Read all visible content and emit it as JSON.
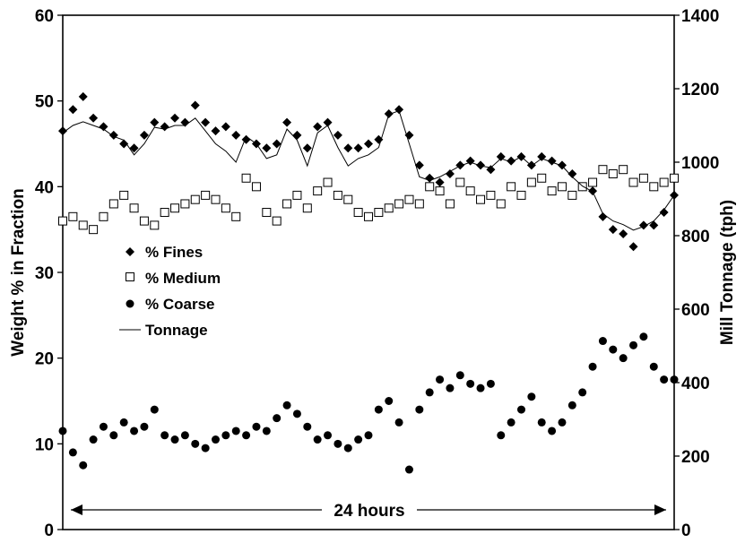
{
  "chart_data": {
    "type": "scatter",
    "title": "",
    "left_axis": {
      "label": "Weight % in Fraction",
      "ylim": [
        0,
        60
      ],
      "ticks": [
        0,
        10,
        20,
        30,
        40,
        50,
        60
      ],
      "tick_labels": [
        "0",
        "10",
        "20",
        "30",
        "40",
        "50",
        "60"
      ]
    },
    "right_axis": {
      "label": "Mill Tonnage (tph)",
      "ylim": [
        0,
        1400
      ],
      "ticks": [
        0,
        200,
        400,
        600,
        800,
        1000,
        1200,
        1400
      ],
      "tick_labels": [
        "0",
        "200",
        "400",
        "600",
        "800",
        "1000",
        "1200",
        "1400"
      ]
    },
    "x_annotation": "24 hours",
    "x_range_hours": [
      0,
      24
    ],
    "grid": false,
    "legend": {
      "placement": "left-middle",
      "entries": [
        {
          "label": "% Fines",
          "marker": "diamond-filled"
        },
        {
          "label": "% Medium",
          "marker": "square-open"
        },
        {
          "label": "% Coarse",
          "marker": "circle-filled"
        },
        {
          "label": "Tonnage",
          "marker": "line"
        }
      ]
    },
    "series": [
      {
        "name": "% Fines",
        "axis": "left",
        "marker": "diamond-filled",
        "x": [
          0,
          0.4,
          0.8,
          1.2,
          1.6,
          2,
          2.4,
          2.8,
          3.2,
          3.6,
          4,
          4.4,
          4.8,
          5.2,
          5.6,
          6,
          6.4,
          6.8,
          7.2,
          7.6,
          8,
          8.4,
          8.8,
          9.2,
          9.6,
          10,
          10.4,
          10.8,
          11.2,
          11.6,
          12,
          12.4,
          12.8,
          13.2,
          13.6,
          14,
          14.4,
          14.8,
          15.2,
          15.6,
          16,
          16.4,
          16.8,
          17.2,
          17.6,
          18,
          18.4,
          18.8,
          19.2,
          19.6,
          20,
          20.4,
          20.8,
          21.2,
          21.6,
          22,
          22.4,
          22.8,
          23.2,
          23.6,
          24
        ],
        "y": [
          46.5,
          49,
          50.5,
          48,
          47,
          46,
          45,
          44.5,
          46,
          47.5,
          47,
          48,
          47.5,
          49.5,
          47.5,
          46.5,
          47,
          46,
          45.5,
          45,
          44.5,
          45,
          47.5,
          46,
          44.5,
          47,
          47.5,
          46,
          44.5,
          44.5,
          45,
          45.5,
          48.5,
          49,
          46,
          42.5,
          41,
          40.5,
          41.5,
          42.5,
          43,
          42.5,
          42,
          43.5,
          43,
          43.5,
          42.5,
          43.5,
          43,
          42.5,
          41.5,
          40,
          39.5,
          36.5,
          35,
          34.5,
          33,
          35.5,
          35.5,
          37,
          39
        ]
      },
      {
        "name": "% Medium",
        "axis": "left",
        "marker": "square-open",
        "x": [
          0,
          0.4,
          0.8,
          1.2,
          1.6,
          2,
          2.4,
          2.8,
          3.2,
          3.6,
          4,
          4.4,
          4.8,
          5.2,
          5.6,
          6,
          6.4,
          6.8,
          7.2,
          7.6,
          8,
          8.4,
          8.8,
          9.2,
          9.6,
          10,
          10.4,
          10.8,
          11.2,
          11.6,
          12,
          12.4,
          12.8,
          13.2,
          13.6,
          14,
          14.4,
          14.8,
          15.2,
          15.6,
          16,
          16.4,
          16.8,
          17.2,
          17.6,
          18,
          18.4,
          18.8,
          19.2,
          19.6,
          20,
          20.4,
          20.8,
          21.2,
          21.6,
          22,
          22.4,
          22.8,
          23.2,
          23.6,
          24
        ],
        "y": [
          36,
          36.5,
          35.5,
          35,
          36.5,
          38,
          39,
          37.5,
          36,
          35.5,
          37,
          37.5,
          38,
          38.5,
          39,
          38.5,
          37.5,
          36.5,
          41,
          40,
          37,
          36,
          38,
          39,
          37.5,
          39.5,
          40.5,
          39,
          38.5,
          37,
          36.5,
          37,
          37.5,
          38,
          38.5,
          38,
          40,
          39.5,
          38,
          40.5,
          39.5,
          38.5,
          39,
          38,
          40,
          39,
          40.5,
          41,
          39.5,
          40,
          39,
          40,
          40.5,
          42,
          41.5,
          42,
          40.5,
          41,
          40,
          40.5,
          41
        ]
      },
      {
        "name": "% Coarse",
        "axis": "left",
        "marker": "circle-filled",
        "x": [
          0,
          0.4,
          0.8,
          1.2,
          1.6,
          2,
          2.4,
          2.8,
          3.2,
          3.6,
          4,
          4.4,
          4.8,
          5.2,
          5.6,
          6,
          6.4,
          6.8,
          7.2,
          7.6,
          8,
          8.4,
          8.8,
          9.2,
          9.6,
          10,
          10.4,
          10.8,
          11.2,
          11.6,
          12,
          12.4,
          12.8,
          13.2,
          13.6,
          14,
          14.4,
          14.8,
          15.2,
          15.6,
          16,
          16.4,
          16.8,
          17.2,
          17.6,
          18,
          18.4,
          18.8,
          19.2,
          19.6,
          20,
          20.4,
          20.8,
          21.2,
          21.6,
          22,
          22.4,
          22.8,
          23.2,
          23.6,
          24
        ],
        "y": [
          11.5,
          9,
          7.5,
          10.5,
          12,
          11,
          12.5,
          11.5,
          12,
          14,
          11,
          10.5,
          11,
          10,
          9.5,
          10.5,
          11,
          11.5,
          11,
          12,
          11.5,
          13,
          14.5,
          13.5,
          12,
          10.5,
          11,
          10,
          9.5,
          10.5,
          11,
          14,
          15,
          12.5,
          7,
          14,
          16,
          17.5,
          16.5,
          18,
          17,
          16.5,
          17,
          11,
          12.5,
          14,
          15.5,
          12.5,
          11.5,
          12.5,
          14.5,
          16,
          19,
          22,
          21,
          20,
          21.5,
          22.5,
          19,
          17.5,
          17.5
        ]
      },
      {
        "name": "Tonnage",
        "axis": "right",
        "marker": "line",
        "x": [
          0,
          0.4,
          0.8,
          1.2,
          1.6,
          2,
          2.4,
          2.8,
          3.2,
          3.6,
          4,
          4.4,
          4.8,
          5.2,
          5.6,
          6,
          6.4,
          6.8,
          7.2,
          7.6,
          8,
          8.4,
          8.8,
          9.2,
          9.6,
          10,
          10.4,
          10.8,
          11.2,
          11.6,
          12,
          12.4,
          12.8,
          13.2,
          13.6,
          14,
          14.4,
          14.8,
          15.2,
          15.6,
          16,
          16.4,
          16.8,
          17.2,
          17.6,
          18,
          18.4,
          18.8,
          19.2,
          19.6,
          20,
          20.4,
          20.8,
          21.2,
          21.6,
          22,
          22.4,
          22.8,
          23.2,
          23.6,
          24
        ],
        "y": [
          1080,
          1100,
          1110,
          1100,
          1090,
          1070,
          1060,
          1020,
          1050,
          1095,
          1090,
          1100,
          1100,
          1120,
          1085,
          1050,
          1030,
          1000,
          1070,
          1050,
          1010,
          1020,
          1090,
          1060,
          990,
          1080,
          1100,
          1040,
          990,
          1010,
          1020,
          1040,
          1130,
          1140,
          1050,
          960,
          950,
          960,
          975,
          990,
          1000,
          990,
          985,
          1010,
          1000,
          1015,
          990,
          1010,
          1000,
          990,
          960,
          935,
          920,
          860,
          840,
          830,
          815,
          825,
          840,
          870,
          910
        ]
      }
    ]
  }
}
